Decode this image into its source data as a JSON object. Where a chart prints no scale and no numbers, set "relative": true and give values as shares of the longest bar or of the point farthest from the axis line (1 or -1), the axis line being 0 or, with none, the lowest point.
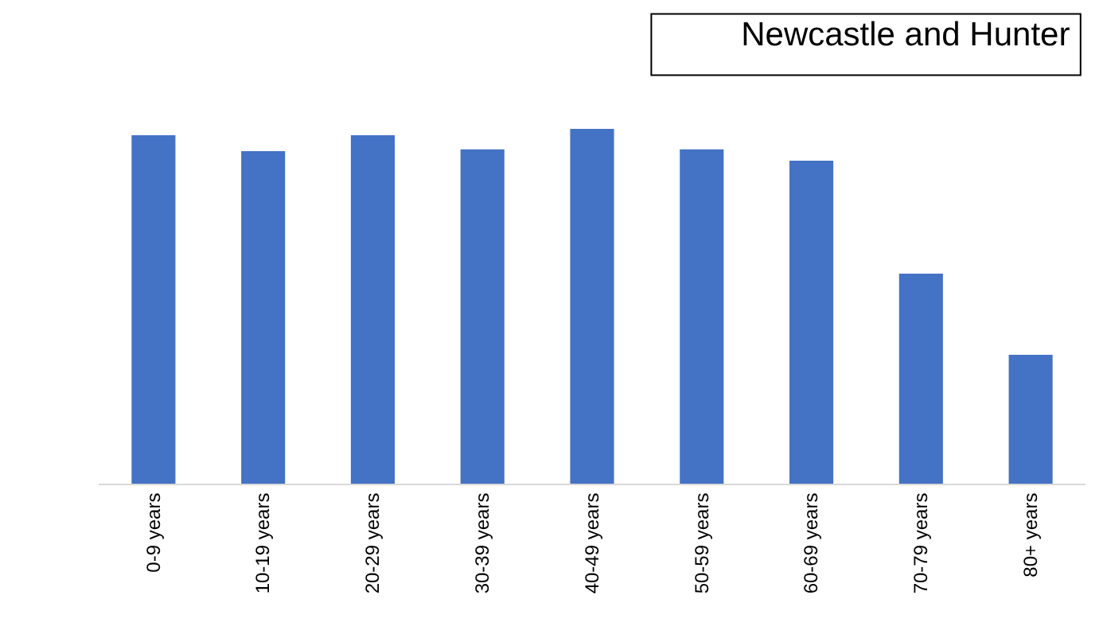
{
  "chart_data": {
    "type": "bar",
    "title": "Newcastle and Hunter",
    "categories": [
      "0-9 years",
      "10-19 years",
      "20-29 years",
      "30-39 years",
      "40-49 years",
      "50-59 years",
      "60-69 years",
      "70-79 years",
      "80+ years"
    ],
    "values": [
      0.982,
      0.937,
      0.982,
      0.942,
      1,
      0.942,
      0.91,
      0.592,
      0.363
    ],
    "color": "#4472c4",
    "relative": true
  }
}
